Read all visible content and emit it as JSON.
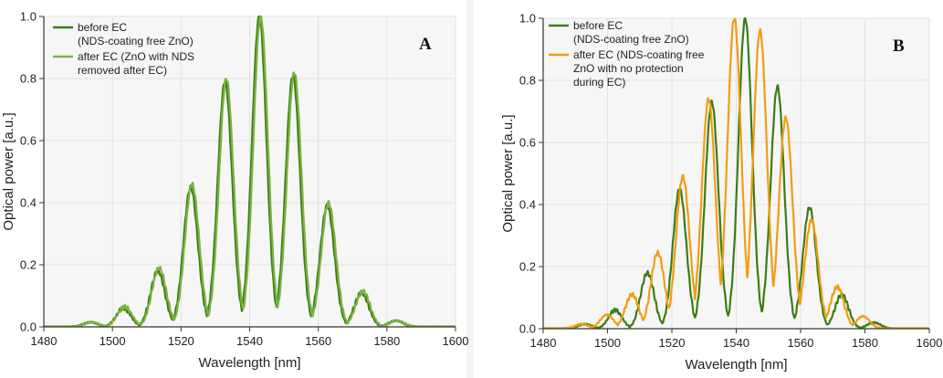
{
  "chart_data": [
    {
      "type": "line",
      "panel_label": "A",
      "xlabel": "Wavelength [nm]",
      "ylabel": "Optical power [a.u.]",
      "xlim": [
        1480,
        1600
      ],
      "ylim": [
        0,
        1.0
      ],
      "x_ticks": [
        "1480",
        "1500",
        "1520",
        "1540",
        "1560",
        "1580",
        "1600"
      ],
      "y_ticks": [
        "0.0",
        "0.2",
        "0.4",
        "0.6",
        "0.8",
        "1.0"
      ],
      "grid": true,
      "legend_position": "top-left",
      "series": [
        {
          "name": "before EC\n(NDS-coating free ZnO)",
          "color": "#3a7d16",
          "peaks": [
            [
              1493.6,
              0.015
            ],
            [
              1503.2,
              0.06
            ],
            [
              1513.2,
              0.18
            ],
            [
              1522.8,
              0.45
            ],
            [
              1532.8,
              0.79
            ],
            [
              1542.8,
              1.0
            ],
            [
              1552.6,
              0.81
            ],
            [
              1562.6,
              0.39
            ],
            [
              1572.6,
              0.11
            ],
            [
              1582.6,
              0.02
            ]
          ]
        },
        {
          "name": "after EC (ZnO with NDS\nremoved after EC)",
          "color": "#7cb342",
          "peaks": [
            [
              1494.0,
              0.015
            ],
            [
              1503.6,
              0.065
            ],
            [
              1513.6,
              0.19
            ],
            [
              1523.2,
              0.46
            ],
            [
              1533.2,
              0.8
            ],
            [
              1543.2,
              1.0
            ],
            [
              1553.0,
              0.82
            ],
            [
              1563.0,
              0.4
            ],
            [
              1573.0,
              0.115
            ],
            [
              1583.0,
              0.02
            ]
          ]
        }
      ]
    },
    {
      "type": "line",
      "panel_label": "B",
      "xlabel": "Wavelength [nm]",
      "ylabel": "Optical power [a.u.]",
      "xlim": [
        1480,
        1600
      ],
      "ylim": [
        0,
        1.0
      ],
      "x_ticks": [
        "1480",
        "1500",
        "1520",
        "1540",
        "1560",
        "1580",
        "1600"
      ],
      "y_ticks": [
        "0.0",
        "0.2",
        "0.4",
        "0.6",
        "0.8",
        "1.0"
      ],
      "grid": true,
      "legend_position": "top-left",
      "series": [
        {
          "name": "before EC\n(NDS-coating free ZnO)",
          "color": "#3a7d16",
          "peaks": [
            [
              1493.0,
              0.015
            ],
            [
              1502.4,
              0.06
            ],
            [
              1512.4,
              0.18
            ],
            [
              1522.4,
              0.45
            ],
            [
              1532.4,
              0.73
            ],
            [
              1542.8,
              1.0
            ],
            [
              1552.8,
              0.78
            ],
            [
              1562.8,
              0.39
            ],
            [
              1572.8,
              0.11
            ],
            [
              1582.8,
              0.02
            ]
          ]
        },
        {
          "name": "after EC (NDS-coating free\nZnO with no protection\nduring EC)",
          "color": "#f39c12",
          "peaks": [
            [
              1492.0,
              0.015
            ],
            [
              1499.8,
              0.045
            ],
            [
              1507.6,
              0.11
            ],
            [
              1515.6,
              0.245
            ],
            [
              1523.4,
              0.49
            ],
            [
              1531.4,
              0.74
            ],
            [
              1539.4,
              1.0
            ],
            [
              1547.4,
              0.96
            ],
            [
              1555.4,
              0.68
            ],
            [
              1563.4,
              0.35
            ],
            [
              1571.4,
              0.135
            ],
            [
              1579.4,
              0.04
            ]
          ]
        }
      ]
    }
  ]
}
